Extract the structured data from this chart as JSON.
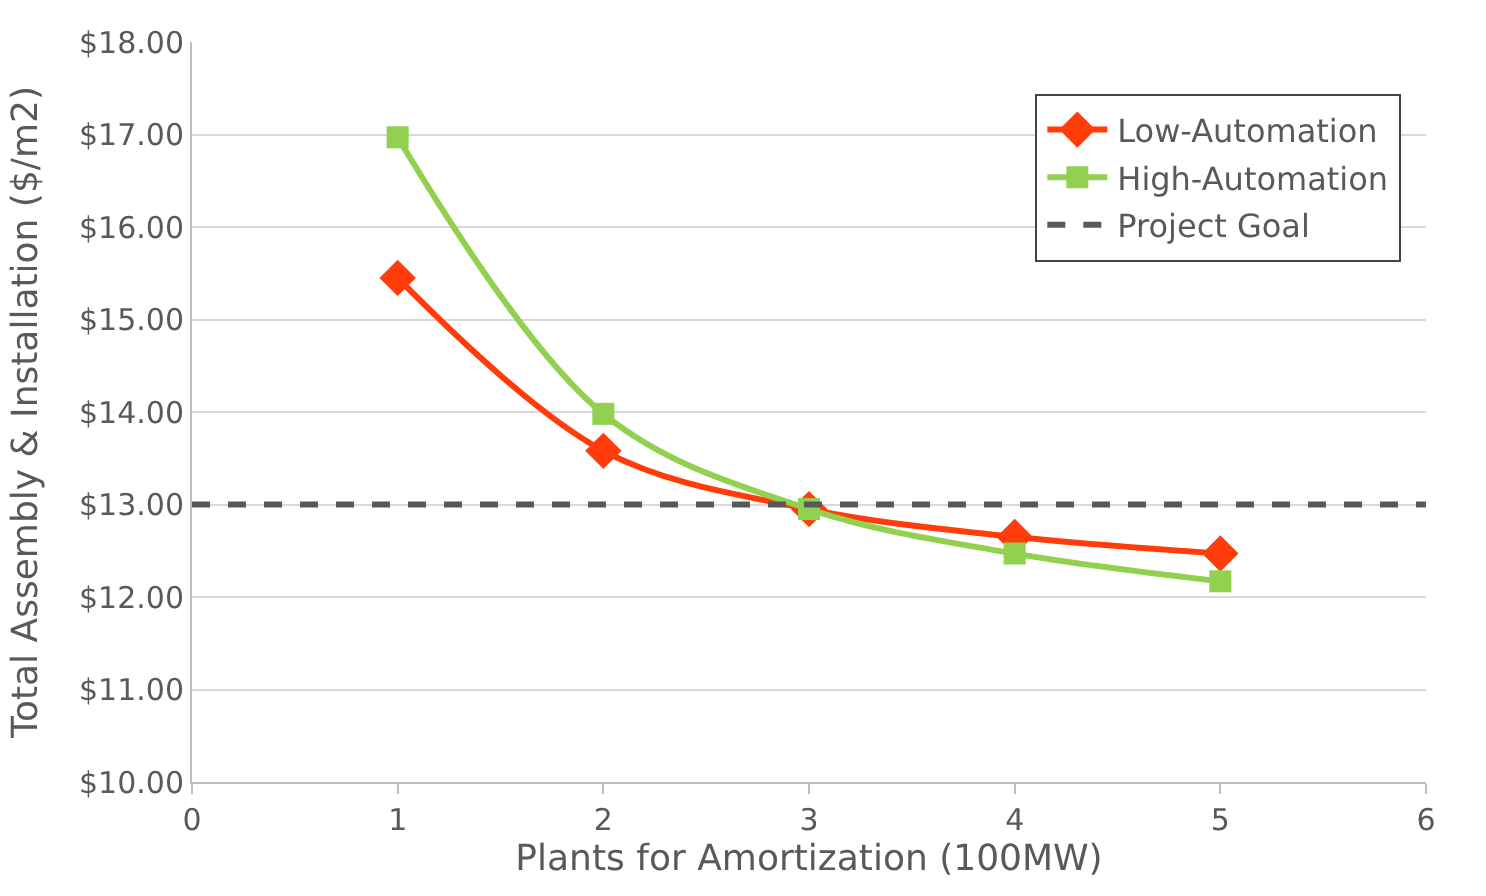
{
  "chart_data": {
    "type": "line",
    "xlabel": "Plants for Amortization (100MW)",
    "ylabel": "Total Assembly & Installation ($/m2)",
    "x": [
      1,
      2,
      3,
      4,
      5
    ],
    "series": [
      {
        "name": "Low-Automation",
        "color": "#ff3c0a",
        "values": [
          15.45,
          13.58,
          12.95,
          12.65,
          12.47
        ],
        "marker": "diamond"
      },
      {
        "name": "High-Automation",
        "color": "#92d050",
        "values": [
          16.97,
          13.98,
          12.95,
          12.47,
          12.17
        ],
        "marker": "square"
      }
    ],
    "ref_lines": [
      {
        "axis": "y",
        "value": 13,
        "label": "Project Goal",
        "color": "#595959",
        "line_style": "dashed"
      }
    ],
    "xlim": [
      0,
      6
    ],
    "xticks": [
      0,
      1,
      2,
      3,
      4,
      5,
      6
    ],
    "ylim": [
      10,
      18
    ],
    "yticks": [
      {
        "value": 10,
        "label": "$10.00"
      },
      {
        "value": 11,
        "label": "$11.00"
      },
      {
        "value": 12,
        "label": "$12.00"
      },
      {
        "value": 13,
        "label": "$13.00"
      },
      {
        "value": 14,
        "label": "$14.00"
      },
      {
        "value": 15,
        "label": "$15.00"
      },
      {
        "value": 16,
        "label": "$16.00"
      },
      {
        "value": 17,
        "label": "$17.00"
      },
      {
        "value": 18,
        "label": "$18.00"
      }
    ],
    "grid": "y",
    "legend": "top right",
    "line_style": "solid"
  }
}
